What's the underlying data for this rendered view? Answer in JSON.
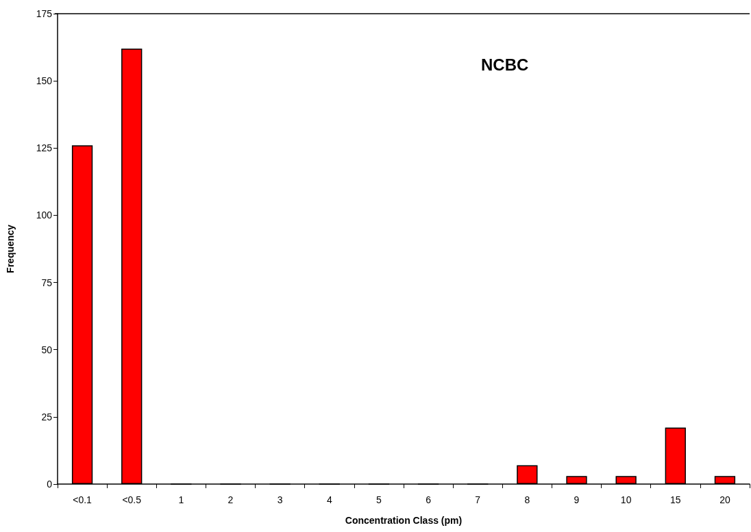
{
  "chart_data": {
    "type": "bar",
    "title": "NCBC",
    "xlabel": "Concentration Class (pm)",
    "ylabel": "Frequency",
    "categories": [
      "<0.1",
      "<0.5",
      "1",
      "2",
      "3",
      "4",
      "5",
      "6",
      "7",
      "8",
      "9",
      "10",
      "15",
      "20"
    ],
    "values": [
      126,
      162,
      0,
      0,
      0,
      0,
      0,
      0,
      0,
      7,
      3,
      3,
      21,
      3
    ],
    "color": "#ff0000",
    "ylim": [
      0,
      175
    ],
    "yticks": [
      0,
      25,
      50,
      75,
      100,
      125,
      150,
      175
    ],
    "grid": false
  }
}
